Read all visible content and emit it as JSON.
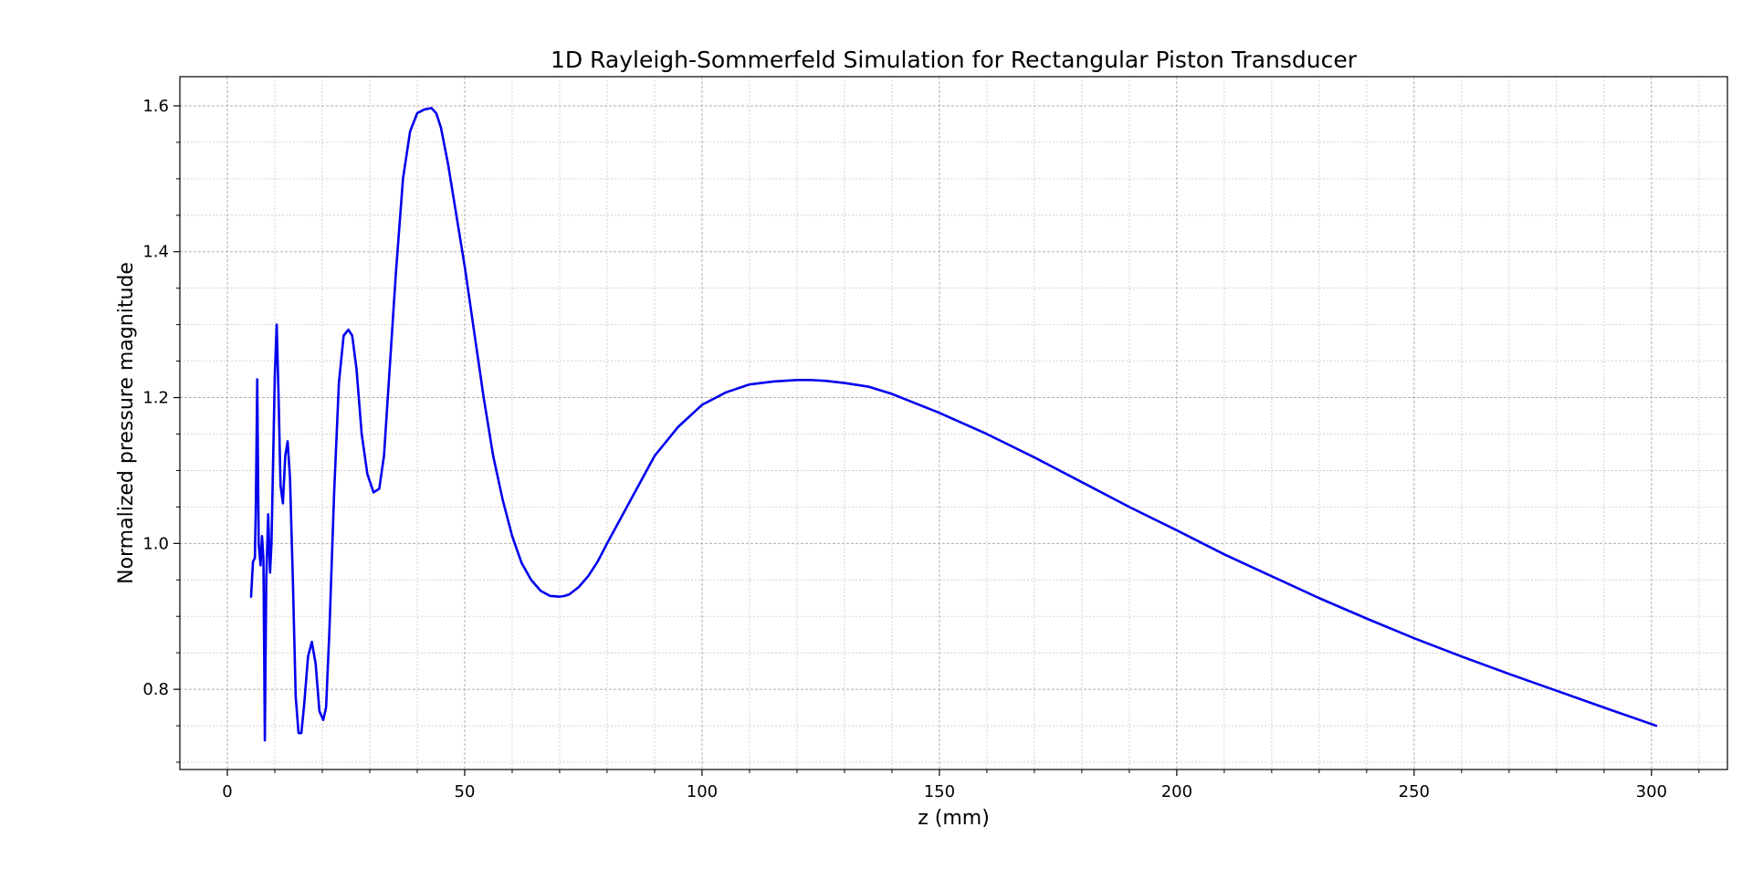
{
  "chart_data": {
    "type": "line",
    "title": "1D Rayleigh-Sommerfeld Simulation for Rectangular Piston Transducer",
    "xlabel": "z (mm)",
    "ylabel": "Normalized pressure magnitude",
    "xlim": [
      -10,
      316
    ],
    "ylim": [
      0.69,
      1.64
    ],
    "xticks": [
      0,
      50,
      100,
      150,
      200,
      250,
      300
    ],
    "yticks": [
      0.8,
      1.0,
      1.2,
      1.4,
      1.6
    ],
    "xtick_labels": [
      "0",
      "50",
      "100",
      "150",
      "200",
      "250",
      "300"
    ],
    "ytick_labels": [
      "0.8",
      "1.0",
      "1.2",
      "1.4",
      "1.6"
    ],
    "grid": true,
    "grid_minor": true,
    "line_color": "#0000ee",
    "series": [
      {
        "x": [
          5.0,
          5.4,
          5.8,
          6.0,
          6.3,
          6.6,
          7.0,
          7.3,
          7.6,
          7.9,
          8.2,
          8.6,
          9.0,
          9.3,
          9.6,
          10.0,
          10.4,
          10.8,
          11.2,
          11.7,
          12.2,
          12.7,
          13.2,
          13.8,
          14.4,
          15.0,
          15.6,
          16.2,
          17.0,
          17.8,
          18.6,
          19.4,
          20.2,
          20.8,
          21.5,
          22.5,
          23.5,
          24.5,
          25.5,
          26.3,
          27.2,
          28.3,
          29.5,
          30.8,
          32.0,
          33.0,
          34.0,
          35.5,
          37.0,
          38.5,
          40.0,
          41.5,
          43.0,
          44.0,
          45.0,
          46.5,
          48.0,
          50.0,
          52.0,
          54.0,
          56.0,
          58.0,
          60.0,
          62.0,
          64.0,
          66.0,
          68.0,
          70.0,
          71.0,
          72.0,
          74.0,
          76.0,
          78.0,
          80.0,
          85.0,
          90.0,
          95.0,
          100.0,
          105.0,
          110.0,
          115.0,
          120.0,
          123.0,
          126.0,
          130.0,
          135.0,
          140.0,
          145.0,
          150.0,
          160.0,
          170.0,
          180.0,
          190.0,
          200.0,
          210.0,
          220.0,
          230.0,
          240.0,
          250.0,
          260.0,
          270.0,
          280.0,
          290.0,
          301.0
        ],
        "y": [
          0.927,
          0.975,
          0.98,
          1.05,
          1.225,
          1.0,
          0.97,
          1.01,
          0.98,
          0.73,
          0.95,
          1.04,
          0.96,
          1.0,
          1.1,
          1.23,
          1.3,
          1.2,
          1.08,
          1.055,
          1.12,
          1.14,
          1.09,
          0.95,
          0.79,
          0.74,
          0.74,
          0.78,
          0.845,
          0.865,
          0.835,
          0.77,
          0.758,
          0.775,
          0.88,
          1.07,
          1.22,
          1.285,
          1.293,
          1.285,
          1.24,
          1.15,
          1.095,
          1.07,
          1.075,
          1.12,
          1.22,
          1.37,
          1.5,
          1.565,
          1.59,
          1.595,
          1.597,
          1.59,
          1.57,
          1.52,
          1.46,
          1.38,
          1.29,
          1.2,
          1.12,
          1.06,
          1.01,
          0.973,
          0.95,
          0.935,
          0.928,
          0.927,
          0.928,
          0.93,
          0.94,
          0.955,
          0.975,
          1.0,
          1.06,
          1.12,
          1.16,
          1.19,
          1.207,
          1.218,
          1.222,
          1.224,
          1.224,
          1.223,
          1.22,
          1.215,
          1.205,
          1.192,
          1.179,
          1.15,
          1.118,
          1.084,
          1.05,
          1.018,
          0.985,
          0.955,
          0.925,
          0.897,
          0.87,
          0.845,
          0.821,
          0.798,
          0.775,
          0.75
        ]
      }
    ]
  }
}
